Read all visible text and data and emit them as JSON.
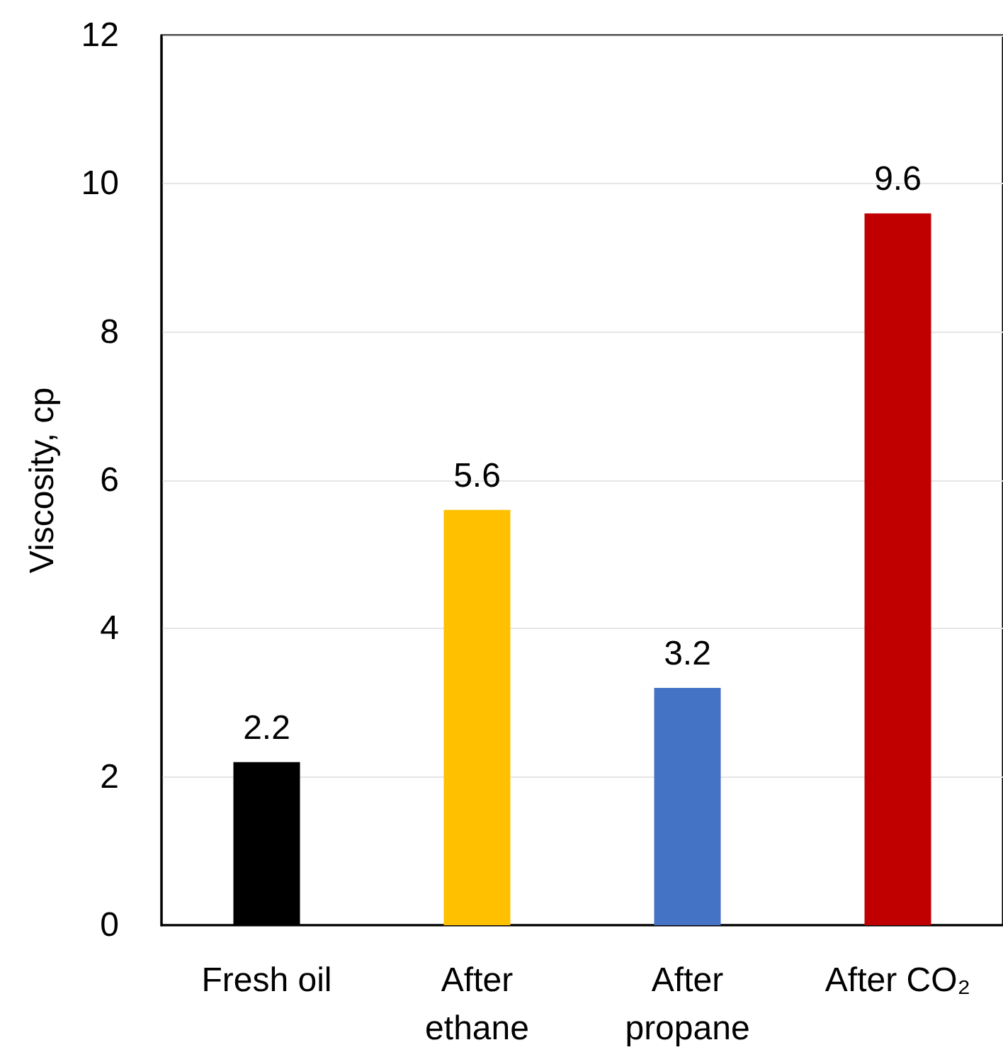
{
  "chart_data": {
    "type": "bar",
    "ylabel": "Viscosity, cp",
    "categories": [
      "Fresh oil",
      "After\nethane",
      "After\npropane",
      "After CO₂"
    ],
    "values": [
      2.2,
      5.6,
      3.2,
      9.6
    ],
    "colors": [
      "#000000",
      "#ffc000",
      "#4472c4",
      "#c00000"
    ],
    "ylim": [
      0,
      12
    ],
    "yticks": [
      0,
      2,
      4,
      6,
      8,
      10,
      12
    ],
    "grid": "y",
    "data_labels": true
  }
}
